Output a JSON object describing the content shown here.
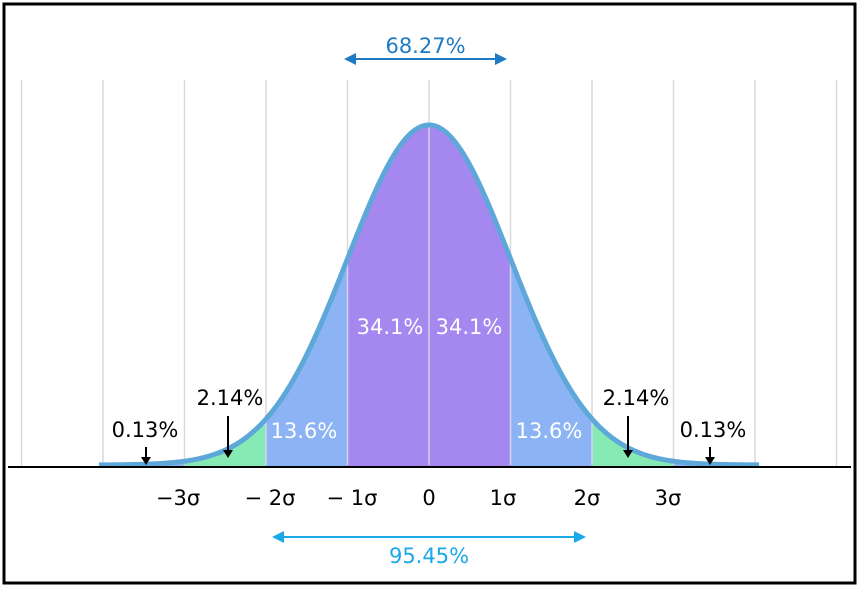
{
  "chart_data": {
    "type": "area",
    "title": "",
    "xlabel": "",
    "ylabel": "",
    "x_range": [
      -4,
      4
    ],
    "tick_labels": [
      "−3σ",
      "− 2σ",
      "− 1σ",
      "0",
      "1σ",
      "2σ",
      "3σ"
    ],
    "tick_values": [
      -3,
      -2,
      -1,
      0,
      1,
      2,
      3
    ],
    "regions": [
      {
        "from": -4,
        "to": -3,
        "label": "0.13%",
        "color": "#8cb4f4"
      },
      {
        "from": -3,
        "to": -2,
        "label": "2.14%",
        "color": "#86eab4"
      },
      {
        "from": -2,
        "to": -1,
        "label": "13.6%",
        "color": "#8cb4f4"
      },
      {
        "from": -1,
        "to": 0,
        "label": "34.1%",
        "color": "#a488f0"
      },
      {
        "from": 0,
        "to": 1,
        "label": "34.1%",
        "color": "#a488f0"
      },
      {
        "from": 1,
        "to": 2,
        "label": "13.6%",
        "color": "#8cb4f4"
      },
      {
        "from": 2,
        "to": 3,
        "label": "2.14%",
        "color": "#86eab4"
      },
      {
        "from": 3,
        "to": 4,
        "label": "0.13%",
        "color": "#8cb4f4"
      }
    ],
    "spans": [
      {
        "from": -1,
        "to": 1,
        "label": "68.27%",
        "color": "#1e7ac2"
      },
      {
        "from": -2,
        "to": 2,
        "label": "95.45%",
        "color": "#1aa8e8"
      }
    ],
    "curve_color": "#5ea7d9",
    "grid": true
  }
}
